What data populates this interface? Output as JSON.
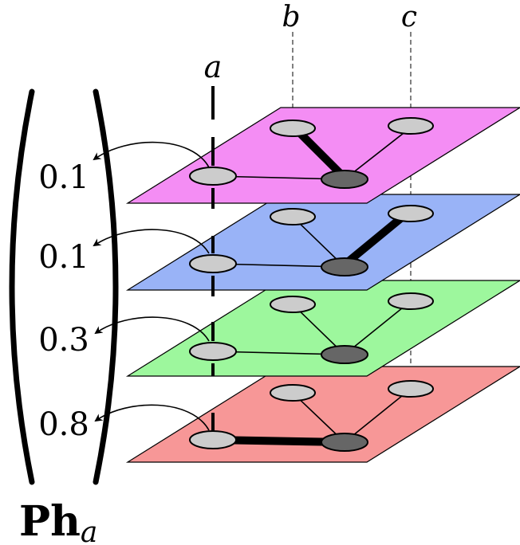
{
  "column_labels": {
    "a": "a",
    "b": "b",
    "c": "c"
  },
  "vector": {
    "values": [
      "0.1",
      "0.1",
      "0.3",
      "0.8"
    ],
    "name_main": "Ph",
    "name_sub": "a"
  },
  "layers": [
    {
      "color": "#f48df4",
      "heavy_edge": "b-center"
    },
    {
      "color": "#99b3f7",
      "heavy_edge": "c-center"
    },
    {
      "color": "#9df79d",
      "heavy_edge": "none"
    },
    {
      "color": "#f79797",
      "heavy_edge": "a-center"
    }
  ],
  "colors": {
    "node_light": "#cccccc",
    "node_dark": "#666666",
    "stroke": "#000000"
  }
}
